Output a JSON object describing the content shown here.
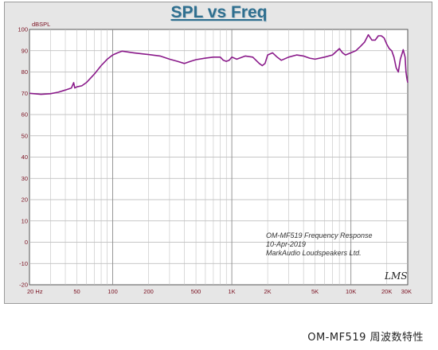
{
  "caption": "OM-MF519 周波数特性",
  "chart_data": {
    "type": "line",
    "title": "SPL vs Freq",
    "ylabel": "dBSPL",
    "xlabel": "",
    "xscale": "log",
    "xlim": [
      20,
      30000
    ],
    "ylim": [
      -20,
      100
    ],
    "grid": true,
    "ytick_labels": [
      "100",
      "90",
      "80",
      "70",
      "60",
      "50",
      "40",
      "30",
      "20",
      "10",
      "0",
      "-10",
      "-20"
    ],
    "xtick_labels": [
      {
        "x": 20,
        "label": "20 Hz"
      },
      {
        "x": 50,
        "label": "50"
      },
      {
        "x": 100,
        "label": "100"
      },
      {
        "x": 200,
        "label": "200"
      },
      {
        "x": 500,
        "label": "500"
      },
      {
        "x": 1000,
        "label": "1K"
      },
      {
        "x": 2000,
        "label": "2K"
      },
      {
        "x": 5000,
        "label": "5K"
      },
      {
        "x": 10000,
        "label": "10K"
      },
      {
        "x": 20000,
        "label": "20K"
      },
      {
        "x": 30000,
        "label": "30K"
      }
    ],
    "annotation": [
      "OM-MF519 Frequency Response",
      "10-Apr-2019",
      "MarkAudio Loudspeakers Ltd."
    ],
    "signature": "LMS",
    "series": [
      {
        "color": "#8a1a8a",
        "points": [
          [
            20,
            70
          ],
          [
            25,
            69.5
          ],
          [
            30,
            69.8
          ],
          [
            35,
            70.5
          ],
          [
            40,
            71.5
          ],
          [
            45,
            72.5
          ],
          [
            47,
            75
          ],
          [
            48,
            72.5
          ],
          [
            50,
            73
          ],
          [
            55,
            73.5
          ],
          [
            60,
            75
          ],
          [
            70,
            79
          ],
          [
            80,
            83
          ],
          [
            90,
            86
          ],
          [
            100,
            88
          ],
          [
            110,
            89
          ],
          [
            120,
            89.8
          ],
          [
            130,
            89.5
          ],
          [
            150,
            89
          ],
          [
            180,
            88.5
          ],
          [
            200,
            88.2
          ],
          [
            250,
            87.5
          ],
          [
            300,
            86
          ],
          [
            350,
            85
          ],
          [
            400,
            84
          ],
          [
            450,
            85
          ],
          [
            500,
            85.8
          ],
          [
            600,
            86.5
          ],
          [
            700,
            87
          ],
          [
            800,
            87
          ],
          [
            850,
            85.5
          ],
          [
            900,
            85
          ],
          [
            950,
            85.5
          ],
          [
            1000,
            87
          ],
          [
            1100,
            86
          ],
          [
            1300,
            87.5
          ],
          [
            1500,
            87
          ],
          [
            1700,
            84
          ],
          [
            1800,
            83
          ],
          [
            1900,
            84
          ],
          [
            2000,
            88
          ],
          [
            2200,
            89
          ],
          [
            2400,
            87
          ],
          [
            2600,
            85.5
          ],
          [
            3000,
            87
          ],
          [
            3500,
            88
          ],
          [
            4000,
            87.5
          ],
          [
            4500,
            86.5
          ],
          [
            5000,
            86
          ],
          [
            6000,
            87
          ],
          [
            7000,
            88
          ],
          [
            8000,
            91
          ],
          [
            8500,
            89
          ],
          [
            9000,
            88
          ],
          [
            10000,
            89
          ],
          [
            11000,
            90
          ],
          [
            12000,
            92
          ],
          [
            13000,
            94
          ],
          [
            14000,
            97.5
          ],
          [
            15000,
            95
          ],
          [
            16000,
            95
          ],
          [
            17000,
            97
          ],
          [
            18000,
            97
          ],
          [
            19000,
            96
          ],
          [
            20000,
            93
          ],
          [
            21000,
            91
          ],
          [
            22000,
            90
          ],
          [
            23000,
            87
          ],
          [
            24000,
            82
          ],
          [
            25000,
            80
          ],
          [
            26000,
            86
          ],
          [
            27000,
            89
          ],
          [
            27500,
            90.5
          ],
          [
            28500,
            87
          ],
          [
            29000,
            80
          ],
          [
            29500,
            77
          ],
          [
            30000,
            75
          ]
        ]
      }
    ]
  }
}
